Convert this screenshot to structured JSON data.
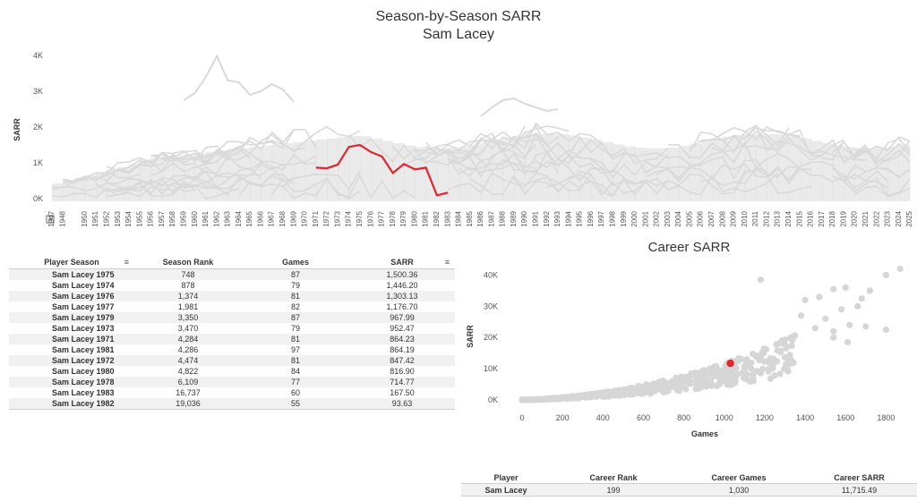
{
  "header": {
    "title": "Season-by-Season SARR",
    "subtitle": "Sam Lacey"
  },
  "line_chart": {
    "ylabel": "SARR",
    "yticks": [
      "0K",
      "1K",
      "2K",
      "3K",
      "4K"
    ],
    "highlight_color": "#e0262e",
    "background_color": "#d9d9d9"
  },
  "scatter_chart": {
    "title": "Career SARR",
    "xlabel": "Games",
    "ylabel": "SARR",
    "highlight_color": "#e0262e",
    "point_color": "#d6d6d6"
  },
  "season_table": {
    "columns": [
      "Player Season",
      "Season Rank",
      "Games",
      "SARR"
    ],
    "rows": [
      [
        "Sam Lacey 1975",
        "748",
        "87",
        "1,500.36"
      ],
      [
        "Sam Lacey 1974",
        "878",
        "79",
        "1,446.20"
      ],
      [
        "Sam Lacey 1976",
        "1,374",
        "81",
        "1,303.13"
      ],
      [
        "Sam Lacey 1977",
        "1,981",
        "82",
        "1,176.70"
      ],
      [
        "Sam Lacey 1979",
        "3,350",
        "87",
        "967.99"
      ],
      [
        "Sam Lacey 1973",
        "3,470",
        "79",
        "952.47"
      ],
      [
        "Sam Lacey 1971",
        "4,284",
        "81",
        "864.23"
      ],
      [
        "Sam Lacey 1981",
        "4,286",
        "97",
        "864.19"
      ],
      [
        "Sam Lacey 1972",
        "4,474",
        "81",
        "847.42"
      ],
      [
        "Sam Lacey 1980",
        "4,822",
        "84",
        "816.90"
      ],
      [
        "Sam Lacey 1978",
        "6,109",
        "77",
        "714.77"
      ],
      [
        "Sam Lacey 1983",
        "16,737",
        "60",
        "167.50"
      ],
      [
        "Sam Lacey 1982",
        "19,036",
        "55",
        "93.63"
      ]
    ]
  },
  "career_table": {
    "columns": [
      "Player",
      "Career Rank",
      "Career Games",
      "Career SARR"
    ],
    "row": [
      "Sam Lacey",
      "199",
      "1,030",
      "11,715.49"
    ]
  },
  "chart_data": [
    {
      "type": "line",
      "title": "Season-by-Season SARR",
      "subtitle": "Sam Lacey",
      "xlabel": "",
      "ylabel": "SARR",
      "x_range": [
        1947,
        2025
      ],
      "ylim": [
        0,
        4000
      ],
      "yticks": [
        0,
        1000,
        2000,
        3000,
        4000
      ],
      "legend": "none",
      "grid": false,
      "series": [
        {
          "name": "Sam Lacey",
          "x": [
            1971,
            1972,
            1973,
            1974,
            1975,
            1976,
            1977,
            1978,
            1979,
            1980,
            1981,
            1982,
            1983
          ],
          "values": [
            864.23,
            847.42,
            952.47,
            1446.2,
            1500.36,
            1303.13,
            1176.7,
            714.77,
            967.99,
            816.9,
            864.19,
            93.63,
            167.5
          ]
        }
      ]
    },
    {
      "type": "scatter",
      "title": "Career SARR",
      "xlabel": "Games",
      "ylabel": "SARR",
      "xlim": [
        -50,
        1900
      ],
      "ylim": [
        -1000,
        43000
      ],
      "xticks": [
        0,
        200,
        400,
        600,
        800,
        1000,
        1200,
        1400,
        1600,
        1800
      ],
      "yticks": [
        0,
        10000,
        20000,
        30000,
        40000
      ],
      "grid": false,
      "highlight": {
        "name": "Sam Lacey",
        "x": 1030,
        "y": 11715.49
      }
    }
  ]
}
